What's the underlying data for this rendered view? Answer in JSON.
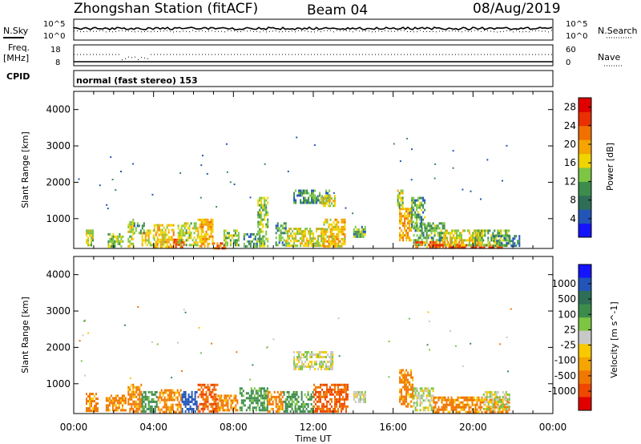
{
  "header": {
    "station": "Zhongshan Station (fitACF)",
    "beam": "Beam 04",
    "date": "08/Aug/2019"
  },
  "strip_labels": {
    "nsky": "N.Sky",
    "nsearch": "N.Search",
    "freq": "Freq.",
    "freq_unit": "[MHz]",
    "nave": "Nave",
    "cpid": "CPID",
    "mode": "normal (fast stereo) 153"
  },
  "strip_ticks": {
    "noise_left": [
      "10^5",
      "10^0"
    ],
    "noise_right": [
      "10^5",
      "10^0"
    ],
    "freq_left": [
      "18",
      "8"
    ],
    "nave_right": [
      "60",
      "0"
    ]
  },
  "colors": {
    "power": [
      "#1414ff",
      "#2255b8",
      "#2e6e57",
      "#3c8c4c",
      "#7dc542",
      "#f0d400",
      "#f5a400",
      "#f07000",
      "#e83000",
      "#e00000"
    ],
    "velocity": [
      "#e00000",
      "#f04800",
      "#f07800",
      "#f5a400",
      "#f8c800",
      "#c8c8c8",
      "#7dc542",
      "#3c8c4c",
      "#2e6e57",
      "#2255b8",
      "#1414ff"
    ]
  },
  "chart_data": [
    {
      "type": "heatmap",
      "name": "power",
      "xlabel": "",
      "ylabel": "Slant Range [km]",
      "x_ticks": [
        "00:00",
        "04:00",
        "08:00",
        "12:00",
        "16:00",
        "20:00",
        "00:00"
      ],
      "xlim_hours": [
        0,
        24
      ],
      "ylim": [
        180,
        4500
      ],
      "y_ticks": [
        1000,
        2000,
        3000,
        4000
      ],
      "colorbar_label": "Power [dB]",
      "colorbar_ticks": [
        4,
        8,
        12,
        16,
        20,
        24,
        28
      ],
      "colorbar_range": [
        0,
        30
      ],
      "regions": [
        {
          "t": [
            0.6,
            1.0
          ],
          "r": [
            300,
            700
          ],
          "v": 14
        },
        {
          "t": [
            1.7,
            2.5
          ],
          "r": [
            250,
            600
          ],
          "v": 12
        },
        {
          "t": [
            2.7,
            3.0
          ],
          "r": [
            250,
            1000
          ],
          "v": 14
        },
        {
          "t": [
            3.0,
            3.5
          ],
          "r": [
            600,
            900
          ],
          "v": 8
        },
        {
          "t": [
            3.4,
            4.0
          ],
          "r": [
            250,
            700
          ],
          "v": 16
        },
        {
          "t": [
            4.0,
            5.0
          ],
          "r": [
            250,
            850
          ],
          "v": 18
        },
        {
          "t": [
            5.0,
            5.5
          ],
          "r": [
            200,
            450
          ],
          "v": 26
        },
        {
          "t": [
            5.2,
            6.2
          ],
          "r": [
            250,
            900
          ],
          "v": 14
        },
        {
          "t": [
            6.2,
            7.0
          ],
          "r": [
            250,
            1000
          ],
          "v": 19
        },
        {
          "t": [
            7.0,
            7.6
          ],
          "r": [
            200,
            350
          ],
          "v": 24
        },
        {
          "t": [
            7.5,
            8.3
          ],
          "r": [
            250,
            700
          ],
          "v": 12
        },
        {
          "t": [
            8.5,
            9.2
          ],
          "r": [
            250,
            600
          ],
          "v": 9
        },
        {
          "t": [
            9.2,
            9.7
          ],
          "r": [
            250,
            1600
          ],
          "v": 12
        },
        {
          "t": [
            10.1,
            10.6
          ],
          "r": [
            250,
            900
          ],
          "v": 9
        },
        {
          "t": [
            10.6,
            12.5
          ],
          "r": [
            250,
            750
          ],
          "v": 15
        },
        {
          "t": [
            11.0,
            12.8
          ],
          "r": [
            1450,
            1800
          ],
          "v": 9
        },
        {
          "t": [
            12.4,
            13.1
          ],
          "r": [
            1350,
            1650
          ],
          "v": 16
        },
        {
          "t": [
            12.5,
            13.6
          ],
          "r": [
            250,
            1000
          ],
          "v": 18
        },
        {
          "t": [
            14.0,
            14.6
          ],
          "r": [
            500,
            800
          ],
          "v": 10
        },
        {
          "t": [
            16.3,
            16.9
          ],
          "r": [
            400,
            1300
          ],
          "v": 20
        },
        {
          "t": [
            16.2,
            16.5
          ],
          "r": [
            1300,
            1800
          ],
          "v": 14
        },
        {
          "t": [
            16.9,
            17.6
          ],
          "r": [
            800,
            1600
          ],
          "v": 10
        },
        {
          "t": [
            17.0,
            18.6
          ],
          "r": [
            300,
            900
          ],
          "v": 10
        },
        {
          "t": [
            17.1,
            19.5
          ],
          "r": [
            200,
            380
          ],
          "v": 22
        },
        {
          "t": [
            17.8,
            21.5
          ],
          "r": [
            200,
            300
          ],
          "v": 28
        },
        {
          "t": [
            18.5,
            20.5
          ],
          "r": [
            300,
            700
          ],
          "v": 16
        },
        {
          "t": [
            20.0,
            21.8
          ],
          "r": [
            300,
            700
          ],
          "v": 12
        },
        {
          "t": [
            21.0,
            22.3
          ],
          "r": [
            250,
            550
          ],
          "v": 7
        }
      ]
    },
    {
      "type": "heatmap",
      "name": "velocity",
      "xlabel": "Time UT",
      "ylabel": "Slant Range [km]",
      "x_ticks": [
        "00:00",
        "04:00",
        "08:00",
        "12:00",
        "16:00",
        "20:00",
        "00:00"
      ],
      "xlim_hours": [
        0,
        24
      ],
      "ylim": [
        180,
        4500
      ],
      "y_ticks": [
        1000,
        2000,
        3000,
        4000
      ],
      "colorbar_label": "Velocity [m s^-1]",
      "colorbar_ticks": [
        1000,
        500,
        100,
        25,
        -25,
        -100,
        -500,
        -1000
      ],
      "regions": [
        {
          "t": [
            0.6,
            1.2
          ],
          "r": [
            250,
            750
          ],
          "v": -100
        },
        {
          "t": [
            1.6,
            2.6
          ],
          "r": [
            250,
            700
          ],
          "v": -100
        },
        {
          "t": [
            2.7,
            3.4
          ],
          "r": [
            250,
            1000
          ],
          "v": -100
        },
        {
          "t": [
            3.4,
            4.2
          ],
          "r": [
            250,
            800
          ],
          "v": 100
        },
        {
          "t": [
            4.2,
            5.4
          ],
          "r": [
            250,
            850
          ],
          "v": -100
        },
        {
          "t": [
            5.4,
            6.2
          ],
          "r": [
            250,
            800
          ],
          "v": 500
        },
        {
          "t": [
            6.2,
            7.2
          ],
          "r": [
            250,
            1000
          ],
          "v": -300
        },
        {
          "t": [
            7.2,
            8.2
          ],
          "r": [
            250,
            700
          ],
          "v": -100
        },
        {
          "t": [
            8.3,
            9.7
          ],
          "r": [
            250,
            900
          ],
          "v": 100
        },
        {
          "t": [
            9.7,
            10.5
          ],
          "r": [
            250,
            800
          ],
          "v": -100
        },
        {
          "t": [
            10.5,
            12.0
          ],
          "r": [
            250,
            800
          ],
          "v": 100
        },
        {
          "t": [
            11.0,
            13.0
          ],
          "r": [
            1400,
            1900
          ],
          "v": 0
        },
        {
          "t": [
            12.0,
            13.7
          ],
          "r": [
            250,
            1000
          ],
          "v": -300
        },
        {
          "t": [
            14.0,
            14.6
          ],
          "r": [
            500,
            800
          ],
          "v": 0
        },
        {
          "t": [
            16.3,
            17.0
          ],
          "r": [
            400,
            1400
          ],
          "v": -100
        },
        {
          "t": [
            17.0,
            18.0
          ],
          "r": [
            300,
            900
          ],
          "v": 0
        },
        {
          "t": [
            18.0,
            21.8
          ],
          "r": [
            200,
            650
          ],
          "v": -100
        },
        {
          "t": [
            20.5,
            21.8
          ],
          "r": [
            300,
            800
          ],
          "v": 0
        }
      ]
    }
  ]
}
